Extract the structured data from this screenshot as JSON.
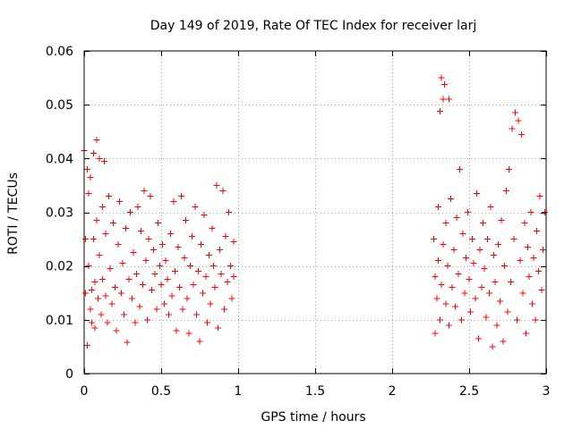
{
  "chart_data": {
    "type": "scatter",
    "title": "Day 149 of 2019, Rate Of TEC Index for receiver larj",
    "xlabel": "GPS time / hours",
    "ylabel": "ROTI / TECUs",
    "xlim": [
      0,
      3
    ],
    "ylim": [
      0,
      0.06
    ],
    "x_ticks": [
      0,
      0.5,
      1,
      1.5,
      2,
      2.5,
      3
    ],
    "x_tick_labels": [
      "0",
      "0.5",
      "1",
      "1.5",
      "2",
      "2.5",
      "3"
    ],
    "y_ticks": [
      0,
      0.01,
      0.02,
      0.03,
      0.04,
      0.05,
      0.06
    ],
    "y_tick_labels": [
      "0",
      "0.01",
      "0.02",
      "0.03",
      "0.04",
      "0.05",
      "0.06"
    ],
    "grid": true,
    "marker": "plus",
    "series_color": "#ff0000",
    "series": [
      {
        "name": "ROTI",
        "points": [
          [
            0.0,
            0.0415
          ],
          [
            0.01,
            0.025
          ],
          [
            0.01,
            0.015
          ],
          [
            0.02,
            0.0052
          ],
          [
            0.02,
            0.038
          ],
          [
            0.03,
            0.02
          ],
          [
            0.03,
            0.0335
          ],
          [
            0.04,
            0.012
          ],
          [
            0.04,
            0.0365
          ],
          [
            0.05,
            0.0155
          ],
          [
            0.05,
            0.0095
          ],
          [
            0.06,
            0.041
          ],
          [
            0.06,
            0.025
          ],
          [
            0.07,
            0.017
          ],
          [
            0.07,
            0.0085
          ],
          [
            0.08,
            0.0435
          ],
          [
            0.08,
            0.0285
          ],
          [
            0.09,
            0.014
          ],
          [
            0.1,
            0.04
          ],
          [
            0.1,
            0.022
          ],
          [
            0.11,
            0.011
          ],
          [
            0.12,
            0.031
          ],
          [
            0.12,
            0.0175
          ],
          [
            0.13,
            0.0395
          ],
          [
            0.14,
            0.0145
          ],
          [
            0.14,
            0.026
          ],
          [
            0.15,
            0.0095
          ],
          [
            0.16,
            0.033
          ],
          [
            0.17,
            0.0195
          ],
          [
            0.18,
            0.013
          ],
          [
            0.19,
            0.028
          ],
          [
            0.2,
            0.016
          ],
          [
            0.21,
            0.008
          ],
          [
            0.22,
            0.024
          ],
          [
            0.23,
            0.032
          ],
          [
            0.24,
            0.015
          ],
          [
            0.25,
            0.0205
          ],
          [
            0.26,
            0.011
          ],
          [
            0.27,
            0.027
          ],
          [
            0.28,
            0.0058
          ],
          [
            0.29,
            0.0175
          ],
          [
            0.3,
            0.03
          ],
          [
            0.31,
            0.014
          ],
          [
            0.32,
            0.0225
          ],
          [
            0.33,
            0.0095
          ],
          [
            0.34,
            0.0185
          ],
          [
            0.35,
            0.031
          ],
          [
            0.36,
            0.0125
          ],
          [
            0.37,
            0.0265
          ],
          [
            0.38,
            0.0165
          ],
          [
            0.39,
            0.034
          ],
          [
            0.4,
            0.021
          ],
          [
            0.41,
            0.01
          ],
          [
            0.42,
            0.025
          ],
          [
            0.43,
            0.033
          ],
          [
            0.44,
            0.0155
          ],
          [
            0.45,
            0.023
          ],
          [
            0.46,
            0.0185
          ],
          [
            0.47,
            0.012
          ],
          [
            0.48,
            0.028
          ],
          [
            0.49,
            0.02
          ],
          [
            0.5,
            0.0165
          ],
          [
            0.51,
            0.024
          ],
          [
            0.52,
            0.013
          ],
          [
            0.53,
            0.021
          ],
          [
            0.54,
            0.0175
          ],
          [
            0.55,
            0.011
          ],
          [
            0.56,
            0.026
          ],
          [
            0.57,
            0.0145
          ],
          [
            0.58,
            0.032
          ],
          [
            0.59,
            0.019
          ],
          [
            0.6,
            0.008
          ],
          [
            0.61,
            0.0235
          ],
          [
            0.62,
            0.016
          ],
          [
            0.63,
            0.033
          ],
          [
            0.64,
            0.012
          ],
          [
            0.65,
            0.0215
          ],
          [
            0.66,
            0.0285
          ],
          [
            0.67,
            0.014
          ],
          [
            0.68,
            0.0075
          ],
          [
            0.69,
            0.02
          ],
          [
            0.7,
            0.0255
          ],
          [
            0.71,
            0.0165
          ],
          [
            0.72,
            0.031
          ],
          [
            0.73,
            0.011
          ],
          [
            0.74,
            0.019
          ],
          [
            0.75,
            0.006
          ],
          [
            0.76,
            0.024
          ],
          [
            0.77,
            0.015
          ],
          [
            0.78,
            0.0295
          ],
          [
            0.79,
            0.018
          ],
          [
            0.8,
            0.0095
          ],
          [
            0.81,
            0.022
          ],
          [
            0.82,
            0.013
          ],
          [
            0.83,
            0.027
          ],
          [
            0.84,
            0.02
          ],
          [
            0.85,
            0.016
          ],
          [
            0.86,
            0.035
          ],
          [
            0.87,
            0.0085
          ],
          [
            0.88,
            0.023
          ],
          [
            0.89,
            0.0185
          ],
          [
            0.9,
            0.034
          ],
          [
            0.91,
            0.012
          ],
          [
            0.92,
            0.0255
          ],
          [
            0.93,
            0.017
          ],
          [
            0.94,
            0.03
          ],
          [
            0.95,
            0.02
          ],
          [
            0.96,
            0.014
          ],
          [
            0.97,
            0.0245
          ],
          [
            0.97,
            0.018
          ],
          [
            2.27,
            0.025
          ],
          [
            2.28,
            0.0075
          ],
          [
            2.28,
            0.018
          ],
          [
            2.29,
            0.014
          ],
          [
            2.3,
            0.031
          ],
          [
            2.3,
            0.021
          ],
          [
            2.31,
            0.0488
          ],
          [
            2.31,
            0.01
          ],
          [
            2.32,
            0.055
          ],
          [
            2.32,
            0.0165
          ],
          [
            2.33,
            0.051
          ],
          [
            2.33,
            0.024
          ],
          [
            2.34,
            0.0538
          ],
          [
            2.35,
            0.013
          ],
          [
            2.35,
            0.028
          ],
          [
            2.36,
            0.02
          ],
          [
            2.37,
            0.009
          ],
          [
            2.37,
            0.051
          ],
          [
            2.38,
            0.0325
          ],
          [
            2.39,
            0.016
          ],
          [
            2.4,
            0.023
          ],
          [
            2.41,
            0.0125
          ],
          [
            2.42,
            0.029
          ],
          [
            2.43,
            0.0185
          ],
          [
            2.44,
            0.038
          ],
          [
            2.45,
            0.01
          ],
          [
            2.46,
            0.026
          ],
          [
            2.47,
            0.015
          ],
          [
            2.48,
            0.0215
          ],
          [
            2.49,
            0.03
          ],
          [
            2.5,
            0.0175
          ],
          [
            2.51,
            0.0115
          ],
          [
            2.52,
            0.025
          ],
          [
            2.53,
            0.0205
          ],
          [
            2.54,
            0.014
          ],
          [
            2.55,
            0.0335
          ],
          [
            2.56,
            0.0065
          ],
          [
            2.57,
            0.023
          ],
          [
            2.58,
            0.016
          ],
          [
            2.59,
            0.028
          ],
          [
            2.6,
            0.0195
          ],
          [
            2.61,
            0.0105
          ],
          [
            2.62,
            0.025
          ],
          [
            2.63,
            0.015
          ],
          [
            2.64,
            0.031
          ],
          [
            2.65,
            0.005
          ],
          [
            2.66,
            0.022
          ],
          [
            2.67,
            0.017
          ],
          [
            2.68,
            0.009
          ],
          [
            2.69,
            0.024
          ],
          [
            2.7,
            0.0135
          ],
          [
            2.71,
            0.0285
          ],
          [
            2.72,
            0.006
          ],
          [
            2.73,
            0.02
          ],
          [
            2.74,
            0.034
          ],
          [
            2.75,
            0.0115
          ],
          [
            2.76,
            0.038
          ],
          [
            2.77,
            0.017
          ],
          [
            2.78,
            0.0455
          ],
          [
            2.79,
            0.025
          ],
          [
            2.8,
            0.0485
          ],
          [
            2.81,
            0.01
          ],
          [
            2.82,
            0.047
          ],
          [
            2.83,
            0.021
          ],
          [
            2.84,
            0.0445
          ],
          [
            2.85,
            0.015
          ],
          [
            2.86,
            0.028
          ],
          [
            2.87,
            0.0075
          ],
          [
            2.88,
            0.0235
          ],
          [
            2.89,
            0.018
          ],
          [
            2.9,
            0.03
          ],
          [
            2.91,
            0.013
          ],
          [
            2.92,
            0.0215
          ],
          [
            2.93,
            0.01
          ],
          [
            2.94,
            0.0265
          ],
          [
            2.95,
            0.019
          ],
          [
            2.96,
            0.033
          ],
          [
            2.97,
            0.0155
          ],
          [
            2.98,
            0.023
          ],
          [
            2.99,
            0.03
          ]
        ]
      }
    ]
  }
}
